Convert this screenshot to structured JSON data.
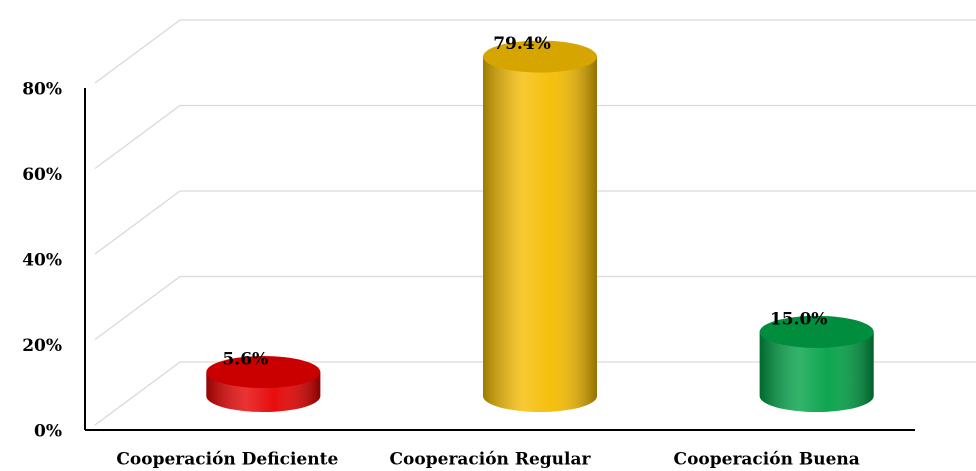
{
  "chart_data": {
    "type": "cylinder_bar",
    "categories": [
      "Cooperación Deficiente",
      "Cooperación Regular",
      "Cooperación Buena"
    ],
    "values": [
      5.6,
      79.4,
      15.0
    ],
    "value_labels": [
      "5.6%",
      "79.4%",
      "15.0%"
    ],
    "colors": [
      "#e60000",
      "#f5bc00",
      "#00a146"
    ],
    "ylim": [
      0,
      80
    ],
    "yticks": [
      {
        "value": 0,
        "label": "0%"
      },
      {
        "value": 20,
        "label": "20%"
      },
      {
        "value": 40,
        "label": "40%"
      },
      {
        "value": 60,
        "label": "60%"
      },
      {
        "value": 80,
        "label": "80%"
      }
    ],
    "grid": true
  }
}
